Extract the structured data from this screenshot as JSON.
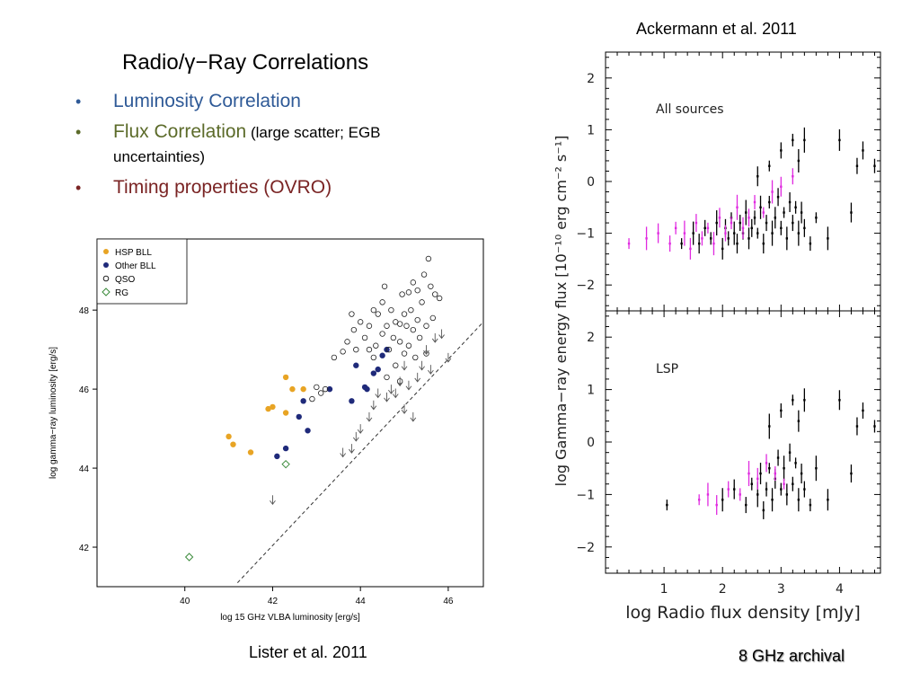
{
  "slide": {
    "title": "Radio/γ−Ray Correlations",
    "bullets": [
      {
        "text": "Luminosity Correlation",
        "color": "#2f5a97"
      },
      {
        "text": "Flux Correlation",
        "note": " (large scatter; EGB uncertainties)",
        "color": "#5c6b2a"
      },
      {
        "text": "Timing properties (OVRO)",
        "color": "#7a2424"
      }
    ],
    "bullet_symbol": "•",
    "citation_left": "Lister et al. 2011",
    "citation_right": "Ackermann et al. 2011",
    "archival_note": "8 GHz archival"
  },
  "chart_data": [
    {
      "type": "scatter",
      "xlabel": "log 15 GHz VLBA luminosity [erg/s]",
      "ylabel": "log gamma−ray luminosity [erg/s]",
      "xlim": [
        38,
        46.8
      ],
      "ylim": [
        41,
        49.8
      ],
      "xticks": [
        40,
        42,
        44,
        46
      ],
      "yticks": [
        42,
        44,
        46,
        48
      ],
      "legend": {
        "position": "top-left",
        "entries": [
          "HSP BLL",
          "Other BLL",
          "QSO",
          "RG"
        ]
      },
      "reference_line": {
        "style": "dashed",
        "points": [
          [
            41.2,
            41.1
          ],
          [
            46.8,
            47.7
          ]
        ]
      },
      "series": [
        {
          "name": "HSP BLL",
          "marker": "filled-circle",
          "color": "#e8a424",
          "points": [
            [
              41.0,
              44.8
            ],
            [
              41.1,
              44.6
            ],
            [
              41.5,
              44.4
            ],
            [
              41.9,
              45.5
            ],
            [
              42.0,
              45.55
            ],
            [
              42.3,
              45.4
            ],
            [
              42.3,
              46.3
            ],
            [
              42.45,
              46.0
            ],
            [
              42.7,
              46.0
            ]
          ]
        },
        {
          "name": "Other BLL",
          "marker": "filled-circle",
          "color": "#1f2a7a",
          "points": [
            [
              42.1,
              44.3
            ],
            [
              42.3,
              44.5
            ],
            [
              42.6,
              45.3
            ],
            [
              42.8,
              44.95
            ],
            [
              42.7,
              45.7
            ],
            [
              43.3,
              46.0
            ],
            [
              43.8,
              45.7
            ],
            [
              43.9,
              46.6
            ],
            [
              44.1,
              46.05
            ],
            [
              44.15,
              46.0
            ],
            [
              44.3,
              46.4
            ],
            [
              44.4,
              46.5
            ],
            [
              44.5,
              46.85
            ],
            [
              44.6,
              47.0
            ]
          ]
        },
        {
          "name": "QSO",
          "marker": "open-circle",
          "color": "#222222",
          "points": [
            [
              42.9,
              45.75
            ],
            [
              43.0,
              46.05
            ],
            [
              43.1,
              45.9
            ],
            [
              43.2,
              46.0
            ],
            [
              43.4,
              46.8
            ],
            [
              43.6,
              46.95
            ],
            [
              43.7,
              47.2
            ],
            [
              43.8,
              47.9
            ],
            [
              43.85,
              47.5
            ],
            [
              43.9,
              47.0
            ],
            [
              44.0,
              47.7
            ],
            [
              44.1,
              47.3
            ],
            [
              44.2,
              47.0
            ],
            [
              44.2,
              47.6
            ],
            [
              44.3,
              46.8
            ],
            [
              44.35,
              47.1
            ],
            [
              44.4,
              47.9
            ],
            [
              44.5,
              48.2
            ],
            [
              44.5,
              47.4
            ],
            [
              44.55,
              48.6
            ],
            [
              44.6,
              47.6
            ],
            [
              44.65,
              47.0
            ],
            [
              44.7,
              48.0
            ],
            [
              44.75,
              47.3
            ],
            [
              44.8,
              46.6
            ],
            [
              44.8,
              47.7
            ],
            [
              44.9,
              47.2
            ],
            [
              44.9,
              46.2
            ],
            [
              44.95,
              48.4
            ],
            [
              45.0,
              47.9
            ],
            [
              45.0,
              46.9
            ],
            [
              45.05,
              47.6
            ],
            [
              45.1,
              47.1
            ],
            [
              45.15,
              48.0
            ],
            [
              45.2,
              47.5
            ],
            [
              45.2,
              48.7
            ],
            [
              45.25,
              46.8
            ],
            [
              45.3,
              47.75
            ],
            [
              45.3,
              48.5
            ],
            [
              45.35,
              47.3
            ],
            [
              45.4,
              48.2
            ],
            [
              45.45,
              48.9
            ],
            [
              45.5,
              47.6
            ],
            [
              45.5,
              46.9
            ],
            [
              45.55,
              49.3
            ],
            [
              45.6,
              48.6
            ],
            [
              45.65,
              47.8
            ],
            [
              45.7,
              48.4
            ],
            [
              45.8,
              48.3
            ],
            [
              44.3,
              48.0
            ],
            [
              44.6,
              46.3
            ],
            [
              44.9,
              47.65
            ],
            [
              45.1,
              48.45
            ]
          ]
        },
        {
          "name": "RG",
          "marker": "open-diamond",
          "color": "#3a8a3a",
          "points": [
            [
              40.1,
              41.75
            ],
            [
              42.3,
              44.1
            ]
          ]
        },
        {
          "name": "",
          "marker": "upper-limit-arrow",
          "color": "#555555",
          "points": [
            [
              42.0,
              43.2
            ],
            [
              43.6,
              44.4
            ],
            [
              43.8,
              44.5
            ],
            [
              43.9,
              44.8
            ],
            [
              44.0,
              45.0
            ],
            [
              44.2,
              45.3
            ],
            [
              44.3,
              45.6
            ],
            [
              44.4,
              45.9
            ],
            [
              44.6,
              45.8
            ],
            [
              44.8,
              45.9
            ],
            [
              44.9,
              46.2
            ],
            [
              45.0,
              45.5
            ],
            [
              45.1,
              46.1
            ],
            [
              45.2,
              45.3
            ],
            [
              45.3,
              46.3
            ],
            [
              45.4,
              46.6
            ],
            [
              45.5,
              47.0
            ],
            [
              45.6,
              46.5
            ],
            [
              45.7,
              47.3
            ],
            [
              45.85,
              47.4
            ],
            [
              46.0,
              46.8
            ],
            [
              44.7,
              46.0
            ],
            [
              45.0,
              46.6
            ]
          ]
        }
      ]
    },
    {
      "type": "scatter",
      "panel_label": "All sources",
      "xlabel": "log Radio flux density [mJy]",
      "ylabel": "log Gamma−ray energy flux [10⁻¹⁰ erg cm⁻² s⁻¹]",
      "xlim": [
        0.0,
        4.7
      ],
      "ylim": [
        -2.5,
        2.5
      ],
      "xticks": [
        1,
        2,
        3,
        4
      ],
      "yticks": [
        -2,
        -1,
        0,
        1,
        2
      ],
      "series": [
        {
          "marker": "errorbar",
          "color": "#000000",
          "points": [
            [
              1.3,
              -1.2
            ],
            [
              1.5,
              -1.0
            ],
            [
              1.6,
              -1.2
            ],
            [
              1.7,
              -0.9
            ],
            [
              1.8,
              -1.1
            ],
            [
              1.9,
              -0.8
            ],
            [
              2.0,
              -1.3
            ],
            [
              2.05,
              -0.9
            ],
            [
              2.1,
              -1.1
            ],
            [
              2.15,
              -0.7
            ],
            [
              2.2,
              -1.0
            ],
            [
              2.25,
              -1.2
            ],
            [
              2.3,
              -0.8
            ],
            [
              2.35,
              -1.0
            ],
            [
              2.4,
              -0.6
            ],
            [
              2.45,
              -1.1
            ],
            [
              2.5,
              -0.9
            ],
            [
              2.55,
              -0.7
            ],
            [
              2.6,
              -1.0
            ],
            [
              2.65,
              -0.5
            ],
            [
              2.7,
              -1.2
            ],
            [
              2.75,
              -0.8
            ],
            [
              2.8,
              -0.4
            ],
            [
              2.85,
              -1.0
            ],
            [
              2.9,
              -0.7
            ],
            [
              2.95,
              -0.3
            ],
            [
              3.0,
              -0.9
            ],
            [
              3.05,
              -0.6
            ],
            [
              3.1,
              -1.1
            ],
            [
              3.15,
              -0.4
            ],
            [
              3.2,
              -0.8
            ],
            [
              3.25,
              -0.5
            ],
            [
              3.3,
              -1.0
            ],
            [
              3.35,
              -0.6
            ],
            [
              3.4,
              -0.9
            ],
            [
              3.5,
              -1.2
            ],
            [
              3.6,
              -0.7
            ],
            [
              3.8,
              -1.1
            ],
            [
              4.2,
              -0.6
            ],
            [
              3.0,
              0.6
            ],
            [
              3.2,
              0.8
            ],
            [
              3.4,
              0.8
            ],
            [
              4.0,
              0.8
            ],
            [
              4.4,
              0.6
            ],
            [
              4.6,
              0.3
            ],
            [
              2.8,
              0.3
            ],
            [
              3.3,
              0.4
            ],
            [
              2.6,
              0.1
            ],
            [
              4.3,
              0.3
            ]
          ]
        },
        {
          "marker": "errorbar",
          "color": "#e02ae0",
          "points": [
            [
              0.4,
              -1.2
            ],
            [
              0.7,
              -1.1
            ],
            [
              0.9,
              -1.0
            ],
            [
              1.1,
              -1.2
            ],
            [
              1.2,
              -0.9
            ],
            [
              1.35,
              -1.0
            ],
            [
              1.45,
              -1.3
            ],
            [
              1.55,
              -0.8
            ],
            [
              1.65,
              -1.1
            ],
            [
              1.75,
              -0.9
            ],
            [
              1.85,
              -1.2
            ],
            [
              1.95,
              -0.7
            ],
            [
              2.05,
              -1.0
            ],
            [
              2.15,
              -0.8
            ],
            [
              2.25,
              -0.5
            ],
            [
              2.35,
              -0.9
            ],
            [
              2.45,
              -0.7
            ],
            [
              2.55,
              -0.4
            ],
            [
              2.7,
              -0.6
            ],
            [
              2.85,
              -0.2
            ],
            [
              3.0,
              -0.1
            ],
            [
              3.2,
              0.1
            ]
          ]
        }
      ]
    },
    {
      "type": "scatter",
      "panel_label": "LSP",
      "xlabel": "log Radio flux density [mJy]",
      "ylabel": "log Gamma−ray energy flux [10⁻¹⁰ erg cm⁻² s⁻¹]",
      "xlim": [
        0.0,
        4.7
      ],
      "ylim": [
        -2.5,
        2.5
      ],
      "xticks": [
        1,
        2,
        3,
        4
      ],
      "yticks": [
        -2,
        -1,
        0,
        1,
        2
      ],
      "series": [
        {
          "marker": "errorbar",
          "color": "#000000",
          "points": [
            [
              1.05,
              -1.2
            ],
            [
              2.0,
              -1.1
            ],
            [
              2.2,
              -0.9
            ],
            [
              2.4,
              -1.2
            ],
            [
              2.5,
              -0.8
            ],
            [
              2.6,
              -1.0
            ],
            [
              2.65,
              -0.6
            ],
            [
              2.7,
              -1.3
            ],
            [
              2.75,
              -0.9
            ],
            [
              2.8,
              -0.5
            ],
            [
              2.85,
              -1.1
            ],
            [
              2.9,
              -0.7
            ],
            [
              2.95,
              -0.3
            ],
            [
              3.0,
              -0.9
            ],
            [
              3.05,
              -0.5
            ],
            [
              3.1,
              -1.0
            ],
            [
              3.15,
              -0.2
            ],
            [
              3.2,
              -0.8
            ],
            [
              3.25,
              -0.4
            ],
            [
              3.3,
              -1.1
            ],
            [
              3.35,
              -0.6
            ],
            [
              3.4,
              -0.9
            ],
            [
              3.5,
              -1.2
            ],
            [
              3.6,
              -0.5
            ],
            [
              3.8,
              -1.1
            ],
            [
              4.2,
              -0.6
            ],
            [
              3.0,
              0.6
            ],
            [
              3.2,
              0.8
            ],
            [
              3.4,
              0.8
            ],
            [
              4.0,
              0.8
            ],
            [
              4.4,
              0.6
            ],
            [
              4.6,
              0.3
            ],
            [
              2.8,
              0.3
            ],
            [
              3.3,
              0.4
            ],
            [
              4.3,
              0.3
            ]
          ]
        },
        {
          "marker": "errorbar",
          "color": "#e02ae0",
          "points": [
            [
              1.6,
              -1.1
            ],
            [
              1.75,
              -1.0
            ],
            [
              1.9,
              -1.2
            ],
            [
              2.1,
              -0.9
            ],
            [
              2.3,
              -1.0
            ],
            [
              2.45,
              -0.6
            ],
            [
              2.6,
              -0.7
            ],
            [
              2.75,
              -0.4
            ],
            [
              2.9,
              -0.6
            ],
            [
              3.05,
              -0.8
            ]
          ]
        }
      ]
    }
  ]
}
